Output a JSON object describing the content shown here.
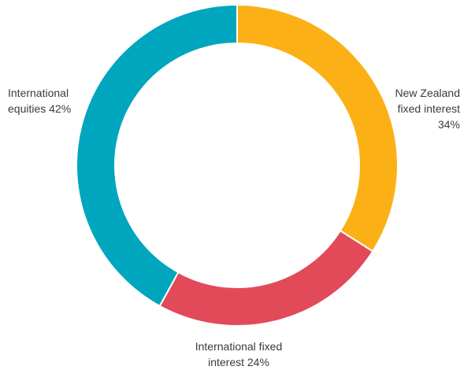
{
  "chart_data": {
    "type": "pie",
    "title": "",
    "categories": [
      "New Zealand fixed interest",
      "International fixed interest",
      "International equities"
    ],
    "values": [
      34,
      24,
      42
    ],
    "unit": "%",
    "colors": [
      "#fbb116",
      "#e24a5a",
      "#00a6be"
    ],
    "donut": true,
    "start": "12 o'clock",
    "direction": "clockwise",
    "legend": "none",
    "labels": [
      {
        "lines": [
          "New Zealand",
          "fixed interest",
          "34%"
        ]
      },
      {
        "lines": [
          "International fixed",
          "interest 24%"
        ]
      },
      {
        "lines": [
          "International",
          "equities 42%"
        ]
      }
    ]
  }
}
